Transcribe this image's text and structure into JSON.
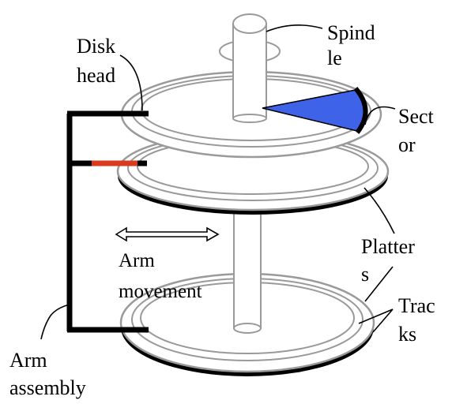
{
  "labels": {
    "spindle": [
      "Spind",
      "le"
    ],
    "disk_head": [
      "Disk",
      "head"
    ],
    "sector": [
      "Sect",
      "or"
    ],
    "platters": [
      "Platter",
      "s"
    ],
    "arm_movement": [
      "Arm",
      "movement"
    ],
    "tracks": [
      "Trac",
      "ks"
    ],
    "arm_assembly": [
      "Arm",
      "assembly"
    ]
  },
  "colors": {
    "sector_fill": "#3f63e8",
    "head_tip": "#d93a1e",
    "arm": "#000000",
    "platter_outline": "#9a9a9a"
  },
  "icons": {
    "arm_movement": "double-headed-arrow-icon"
  }
}
